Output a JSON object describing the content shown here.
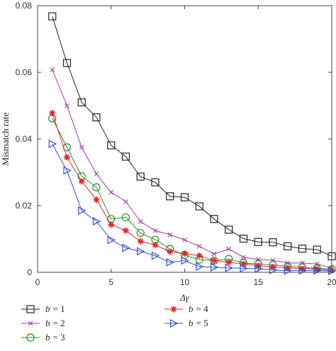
{
  "chart_data": {
    "type": "line",
    "xlabel": "Δγ",
    "ylabel": "Mismatch rate",
    "xlim": [
      0,
      20
    ],
    "ylim": [
      0,
      0.08
    ],
    "x_ticks": [
      "0",
      "5",
      "10",
      "15",
      "20"
    ],
    "y_ticks": [
      "0",
      "0.02",
      "0.04",
      "0.06",
      "0.08"
    ],
    "grid": false,
    "legend_position": "bottom",
    "x": [
      1,
      2,
      3,
      4,
      5,
      6,
      7,
      8,
      9,
      10,
      11,
      12,
      13,
      14,
      15,
      16,
      17,
      18,
      19,
      20
    ],
    "series": [
      {
        "name": "b = 1",
        "label_var": "b",
        "label_val": "= 1",
        "color": "#222222",
        "marker": "square",
        "values": [
          0.0768,
          0.0628,
          0.051,
          0.0465,
          0.0381,
          0.0347,
          0.0287,
          0.027,
          0.0228,
          0.0225,
          0.0198,
          0.016,
          0.0128,
          0.0101,
          0.0091,
          0.009,
          0.0078,
          0.0071,
          0.0068,
          0.0048
        ]
      },
      {
        "name": "b = 2",
        "label_var": "b",
        "label_val": "= 2",
        "color": "#a23ca2",
        "marker": "cross",
        "values": [
          0.0608,
          0.05,
          0.0375,
          0.0295,
          0.024,
          0.0212,
          0.0152,
          0.0125,
          0.0113,
          0.0097,
          0.0078,
          0.0055,
          0.007,
          0.0045,
          0.0038,
          0.0036,
          0.0028,
          0.0028,
          0.0025,
          0.0013
        ]
      },
      {
        "name": "b = 3",
        "label_var": "b",
        "label_val": "= 3",
        "color": "#2e8b2e",
        "marker": "circle",
        "values": [
          0.0462,
          0.0375,
          0.0288,
          0.0255,
          0.016,
          0.0165,
          0.0118,
          0.0098,
          0.007,
          0.0052,
          0.0038,
          0.0035,
          0.004,
          0.0028,
          0.0025,
          0.0022,
          0.0018,
          0.0015,
          0.0012,
          0.001
        ]
      },
      {
        "name": "b = 4",
        "label_var": "b",
        "label_val": "= 4",
        "color": "#e8232a",
        "marker": "star",
        "values": [
          0.0478,
          0.0345,
          0.0273,
          0.0218,
          0.0143,
          0.0125,
          0.0093,
          0.0082,
          0.0062,
          0.0056,
          0.005,
          0.0035,
          0.003,
          0.0025,
          0.002,
          0.0016,
          0.0013,
          0.0011,
          0.001,
          0.0005
        ]
      },
      {
        "name": "b = 5",
        "label_var": "b",
        "label_val": "= 5",
        "color": "#2f4fd0",
        "marker": "triangle-right",
        "values": [
          0.0385,
          0.0305,
          0.0185,
          0.0153,
          0.0097,
          0.0073,
          0.0063,
          0.005,
          0.003,
          0.0035,
          0.0017,
          0.0015,
          0.0013,
          0.0012,
          0.0011,
          0.0007,
          0.0005,
          0.0005,
          0.0005,
          0.0004
        ]
      }
    ]
  }
}
